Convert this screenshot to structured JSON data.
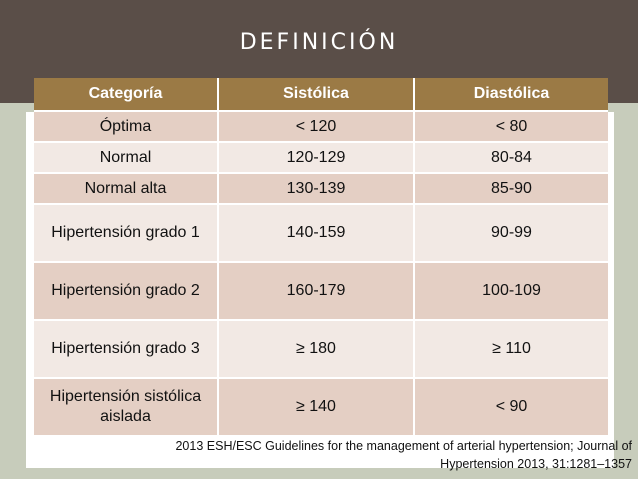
{
  "title": "DEFINICIÓN",
  "table": {
    "headers": [
      "Categoría",
      "Sistólica",
      "Diastólica"
    ],
    "rows": [
      {
        "category": "Óptima",
        "systolic": "< 120",
        "diastolic": "< 80"
      },
      {
        "category": "Normal",
        "systolic": "120-129",
        "diastolic": "80-84"
      },
      {
        "category": "Normal alta",
        "systolic": "130-139",
        "diastolic": "85-90"
      },
      {
        "category": "Hipertensión grado 1",
        "systolic": "140-159",
        "diastolic": "90-99"
      },
      {
        "category": "Hipertensión grado 2",
        "systolic": "160-179",
        "diastolic": "100-109"
      },
      {
        "category": "Hipertensión grado 3",
        "systolic": "≥ 180",
        "diastolic": "≥ 110"
      },
      {
        "category": "Hipertensión sistólica aislada",
        "systolic": "≥ 140",
        "diastolic": "< 90"
      }
    ]
  },
  "source": {
    "line1": "2013 ESH/ESC Guidelines for the management of arterial hypertension; Journal of",
    "line2": "Hypertension 2013, 31:1281–1357"
  }
}
